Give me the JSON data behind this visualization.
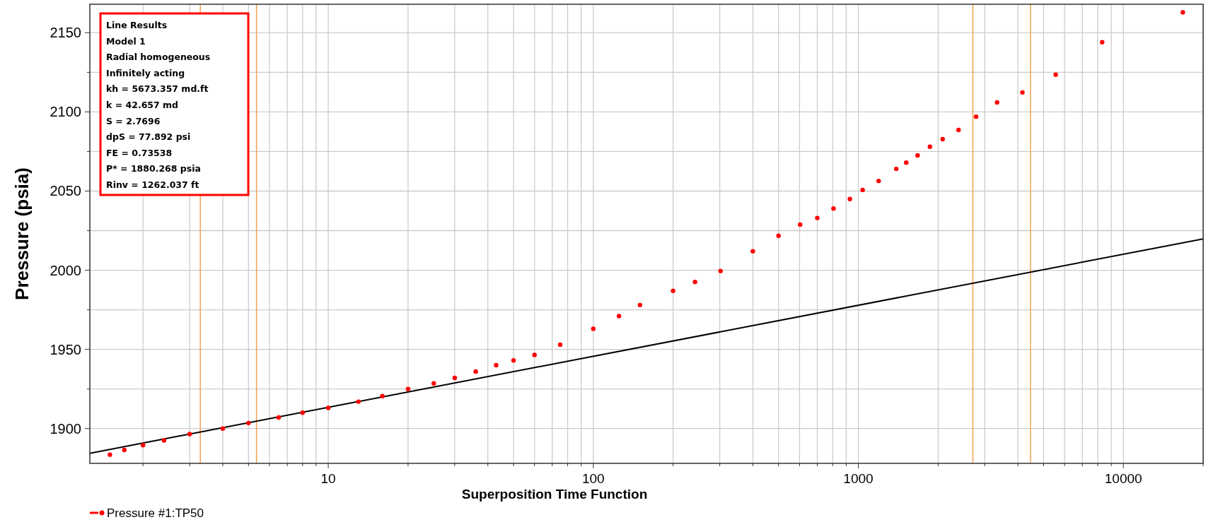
{
  "chart_data": {
    "type": "scatter",
    "xlabel": "Superposition Time Function",
    "ylabel": "Pressure (psia)",
    "log": "x",
    "grid": true,
    "legend": "bottom left",
    "xlim": [
      1.26,
      20000
    ],
    "ylim": [
      1878,
      2168
    ],
    "xticks": [
      {
        "value": 2,
        "label": null
      },
      {
        "value": 3,
        "label": null
      },
      {
        "value": 4,
        "label": null
      },
      {
        "value": 5,
        "label": null
      },
      {
        "value": 6,
        "label": null
      },
      {
        "value": 7,
        "label": null
      },
      {
        "value": 8,
        "label": null
      },
      {
        "value": 9,
        "label": null
      },
      10,
      {
        "value": 20,
        "label": null
      },
      {
        "value": 30,
        "label": null
      },
      {
        "value": 40,
        "label": null
      },
      {
        "value": 50,
        "label": null
      },
      {
        "value": 60,
        "label": null
      },
      {
        "value": 70,
        "label": null
      },
      {
        "value": 80,
        "label": null
      },
      {
        "value": 90,
        "label": null
      },
      100,
      {
        "value": 200,
        "label": null
      },
      {
        "value": 300,
        "label": null
      },
      {
        "value": 400,
        "label": null
      },
      {
        "value": 500,
        "label": null
      },
      {
        "value": 600,
        "label": null
      },
      {
        "value": 700,
        "label": null
      },
      {
        "value": 800,
        "label": null
      },
      {
        "value": 900,
        "label": null
      },
      1000,
      {
        "value": 2000,
        "label": null
      },
      {
        "value": 3000,
        "label": null
      },
      {
        "value": 4000,
        "label": null
      },
      {
        "value": 5000,
        "label": null
      },
      {
        "value": 6000,
        "label": null
      },
      {
        "value": 7000,
        "label": null
      },
      {
        "value": 8000,
        "label": null
      },
      {
        "value": 9000,
        "label": null
      },
      10000,
      {
        "value": 20000,
        "label": null
      }
    ],
    "yticks": [
      1900,
      {
        "value": 1925,
        "label": null
      },
      1950,
      {
        "value": 1975,
        "label": null
      },
      2000,
      {
        "value": 2025,
        "label": null
      },
      2050,
      {
        "value": 2075,
        "label": null
      },
      2100,
      {
        "value": 2125,
        "label": null
      },
      2150
    ],
    "series": [
      {
        "name": "Pressure #1:TP50",
        "marker": "circle",
        "color": "#ff0000",
        "x": [
          1.5,
          1.7,
          2,
          2.4,
          3,
          4,
          5,
          6.5,
          8,
          10,
          13,
          16,
          20,
          25,
          30,
          36,
          43,
          50,
          60,
          75,
          100,
          125,
          150,
          200,
          242,
          302,
          400,
          500,
          603,
          700,
          806,
          929,
          1038,
          1193,
          1390,
          1516,
          1673,
          1862,
          2080,
          2388,
          2782,
          3337,
          4159,
          5556,
          8318,
          16760
        ],
        "values": [
          1883.5,
          1886.5,
          1889.5,
          1892.5,
          1896.5,
          1900,
          1903.5,
          1907,
          1910,
          1913,
          1917,
          1920.5,
          1925,
          1928.5,
          1932,
          1936,
          1940,
          1943,
          1946.5,
          1953,
          1963,
          1971,
          1978,
          1987,
          1992.6,
          1999.5,
          2012,
          2021.8,
          2028.8,
          2033,
          2039,
          2045,
          2050.7,
          2056.4,
          2064,
          2068,
          2072.5,
          2078,
          2082.8,
          2088.6,
          2097,
          2106,
          2112.3,
          2123.5,
          2144,
          2162.9
        ]
      },
      {
        "type": "line",
        "marker": "none",
        "color": "#000000",
        "x": [
          1.26,
          20000
        ],
        "values": [
          1884.4,
          2019.8
        ]
      }
    ],
    "ref_lines": [
      {
        "axis": "x",
        "value": 3.29,
        "color": "#f5a04a"
      },
      {
        "axis": "x",
        "value": 5.36,
        "color": "#f5a04a"
      },
      {
        "axis": "x",
        "value": 2705,
        "color": "#f5a04a"
      },
      {
        "axis": "x",
        "value": 4460,
        "color": "#f5a04a"
      }
    ],
    "annotations": [
      "Line Results",
      "Model 1",
      "Radial homogeneous",
      "Infinitely acting",
      "kh = 5673.357 md.ft",
      "k = 42.657 md",
      "S = 2.7696",
      "dpS = 77.892 psi",
      "FE = 0.73538",
      "P* = 1880.268 psia",
      "Rinv = 1262.037 ft"
    ]
  }
}
